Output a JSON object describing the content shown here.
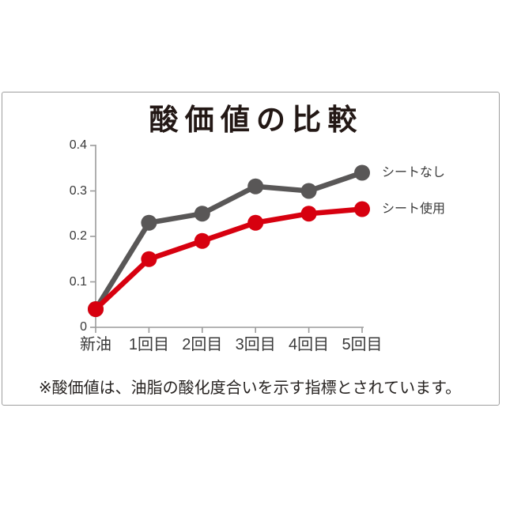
{
  "page": {
    "background": "#ffffff",
    "frame_border_color": "#9e9e9e"
  },
  "title": "酸価値の比較",
  "footnote": "※酸価値は、油脂の酸化度合いを示す指標とされています。",
  "chart_data": {
    "type": "line",
    "title": "酸価値の比較",
    "categories": [
      "新油",
      "1回目",
      "2回目",
      "3回目",
      "4回目",
      "5回目"
    ],
    "series": [
      {
        "name": "シートなし",
        "color": "#595757",
        "values": [
          0.04,
          0.23,
          0.25,
          0.31,
          0.3,
          0.34
        ]
      },
      {
        "name": "シート使用",
        "color": "#d7000f",
        "values": [
          0.04,
          0.15,
          0.19,
          0.23,
          0.25,
          0.26
        ]
      }
    ],
    "xlabel": "",
    "ylabel": "",
    "ylim": [
      0,
      0.4
    ],
    "y_ticks": [
      {
        "label": "0",
        "value": 0
      },
      {
        "label": "0.1",
        "value": 0.1
      },
      {
        "label": "0.2",
        "value": 0.2
      },
      {
        "label": "0.3",
        "value": 0.3
      },
      {
        "label": "0.4",
        "value": 0.4
      }
    ],
    "axis_color": "#9b9b9b",
    "grid": false,
    "legend_position": "right",
    "note": "※酸価値は、油脂の酸化度合いを示す指標とされています。"
  }
}
